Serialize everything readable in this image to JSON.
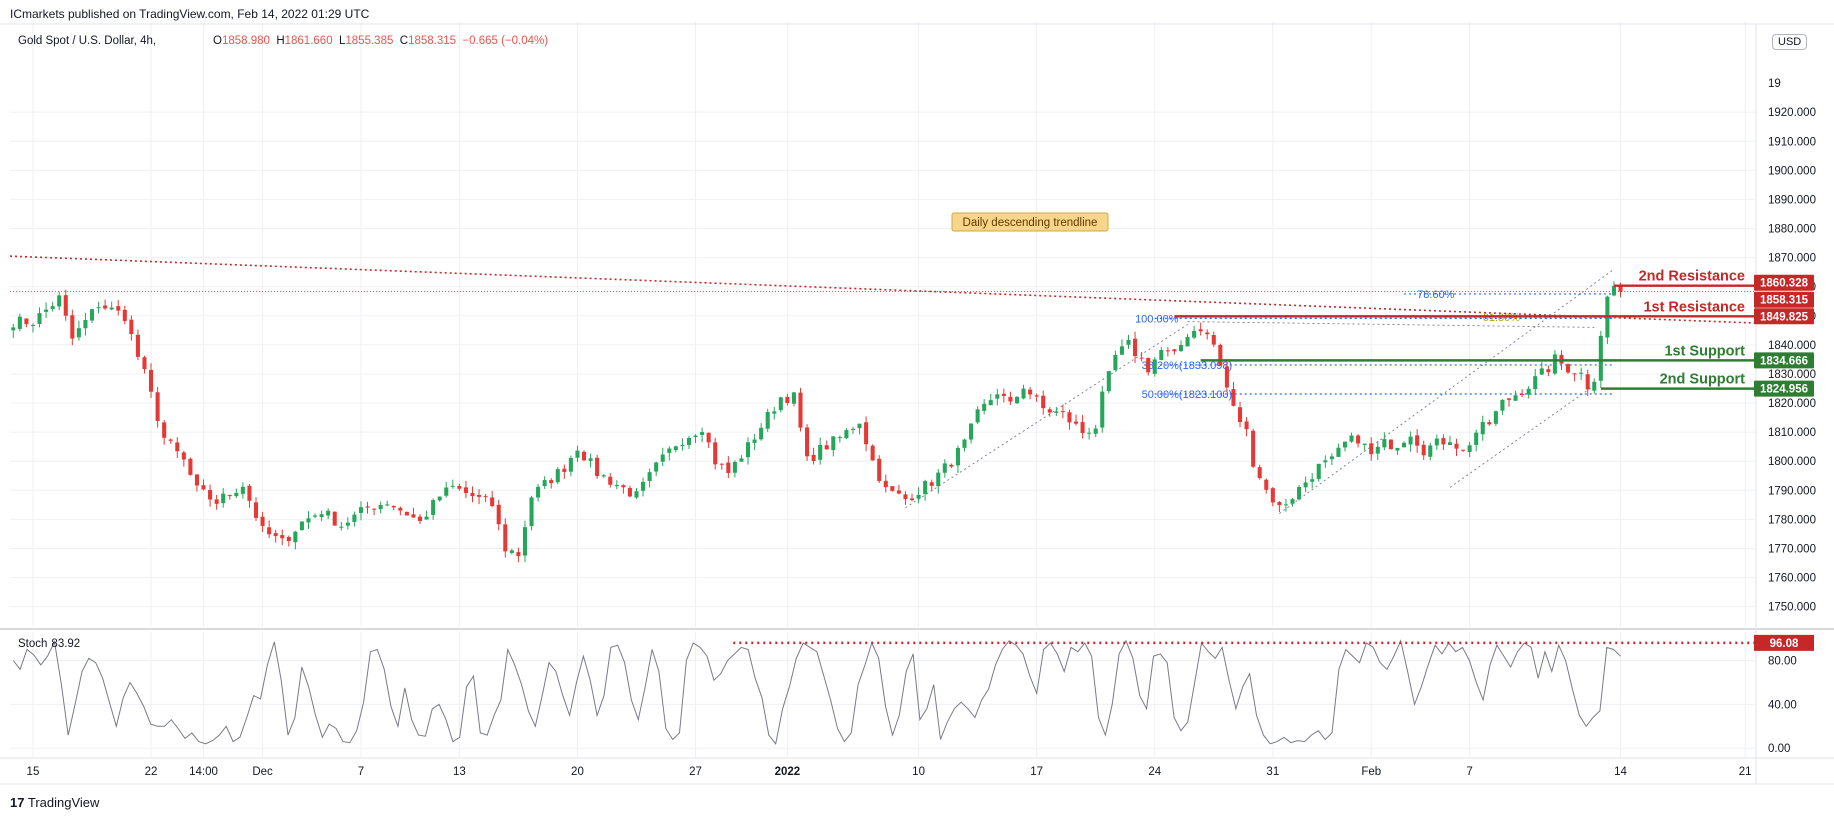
{
  "header": {
    "published_by": "ICmarkets published on TradingView.com, Feb 14, 2022 01:29 UTC",
    "symbol": "Gold Spot / U.S. Dollar, 4h,",
    "ohlc": {
      "o_key": "O",
      "o": "1858.980",
      "h_key": "H",
      "h": "1861.660",
      "l_key": "L",
      "l": "1855.385",
      "c_key": "C",
      "c": "1858.315",
      "change": "−0.665 (−0.04%)"
    },
    "currency": "USD"
  },
  "footer": {
    "brand_mark": "17",
    "brand": "TradingView"
  },
  "colors": {
    "up": "#26a65b",
    "down": "#e53935",
    "resistance": "#c62828",
    "support": "#2e7d32",
    "fib_blue": "#2962ff",
    "fib_gold": "#b5a600",
    "note_bg": "#f7d58a",
    "grid": "#eef0f4",
    "axis_text": "#131722",
    "stoch": "#787b86"
  },
  "chart_data": [
    {
      "type": "candlestick",
      "title": "Gold Spot / U.S. Dollar, 4h,",
      "ylim": [
        1743,
        1951
      ],
      "y_ticks": [
        1750,
        1760,
        1770,
        1780,
        1790,
        1800,
        1810,
        1820,
        1830,
        1840,
        1850,
        1860,
        1870,
        1880,
        1890,
        1900,
        1910,
        1920
      ],
      "y_tick_labels": [
        "1750.000",
        "1760.000",
        "1770.000",
        "1780.000",
        "1790.000",
        "1800.000",
        "1810.000",
        "1820.000",
        "1830.000",
        "1840.000",
        "1850.000",
        "1860.000",
        "1870.000",
        "1880.000",
        "1890.000",
        "1900.000",
        "1910.000",
        "1920.000"
      ],
      "y_top_label": "19",
      "x_ticks": [
        {
          "label": "15",
          "i": 3
        },
        {
          "label": "22",
          "i": 21
        },
        {
          "label": "14:00",
          "i": 29
        },
        {
          "label": "Dec",
          "i": 38
        },
        {
          "label": "7",
          "i": 53
        },
        {
          "label": "13",
          "i": 68
        },
        {
          "label": "20",
          "i": 86
        },
        {
          "label": "27",
          "i": 104
        },
        {
          "label": "2022",
          "i": 118,
          "bold": true
        },
        {
          "label": "10",
          "i": 138
        },
        {
          "label": "17",
          "i": 156
        },
        {
          "label": "24",
          "i": 174
        },
        {
          "label": "31",
          "i": 192
        },
        {
          "label": "Feb",
          "i": 207
        },
        {
          "label": "7",
          "i": 222
        },
        {
          "label": "14",
          "i": 245
        },
        {
          "label": "21",
          "i": 264
        }
      ],
      "path": [
        [
          0,
          1848
        ],
        [
          3,
          1848
        ],
        [
          7,
          1856
        ],
        [
          9,
          1842
        ],
        [
          13,
          1854
        ],
        [
          17,
          1850
        ],
        [
          19,
          1836
        ],
        [
          20,
          1830
        ],
        [
          23,
          1808
        ],
        [
          26,
          1800
        ],
        [
          28,
          1790
        ],
        [
          31,
          1786
        ],
        [
          35,
          1792
        ],
        [
          38,
          1776
        ],
        [
          41,
          1772
        ],
        [
          44,
          1779
        ],
        [
          47,
          1783
        ],
        [
          50,
          1778
        ],
        [
          54,
          1784
        ],
        [
          57,
          1786
        ],
        [
          60,
          1782
        ],
        [
          62,
          1779
        ],
        [
          65,
          1788
        ],
        [
          67,
          1791
        ],
        [
          70,
          1788
        ],
        [
          73,
          1785
        ],
        [
          75,
          1770
        ],
        [
          77,
          1768
        ],
        [
          79,
          1788
        ],
        [
          84,
          1798
        ],
        [
          86,
          1805
        ],
        [
          89,
          1796
        ],
        [
          92,
          1792
        ],
        [
          95,
          1788
        ],
        [
          98,
          1798
        ],
        [
          101,
          1806
        ],
        [
          105,
          1812
        ],
        [
          107,
          1800
        ],
        [
          109,
          1796
        ],
        [
          112,
          1805
        ],
        [
          114,
          1812
        ],
        [
          117,
          1822
        ],
        [
          119,
          1822
        ],
        [
          121,
          1800
        ],
        [
          123,
          1804
        ],
        [
          126,
          1808
        ],
        [
          129,
          1814
        ],
        [
          131,
          1800
        ],
        [
          133,
          1790
        ],
        [
          136,
          1787
        ],
        [
          140,
          1793
        ],
        [
          143,
          1800
        ],
        [
          145,
          1806
        ],
        [
          147,
          1816
        ],
        [
          150,
          1824
        ],
        [
          152,
          1819
        ],
        [
          154,
          1826
        ],
        [
          157,
          1818
        ],
        [
          160,
          1816
        ],
        [
          163,
          1810
        ],
        [
          165,
          1812
        ],
        [
          166,
          1822
        ],
        [
          168,
          1836
        ],
        [
          170,
          1840
        ],
        [
          173,
          1832
        ],
        [
          175,
          1838
        ],
        [
          177,
          1836
        ],
        [
          179,
          1844
        ],
        [
          181,
          1846
        ],
        [
          183,
          1840
        ],
        [
          186,
          1818
        ],
        [
          188,
          1810
        ],
        [
          189,
          1800
        ],
        [
          191,
          1790
        ],
        [
          193,
          1784
        ],
        [
          195,
          1788
        ],
        [
          197,
          1793
        ],
        [
          199,
          1798
        ],
        [
          201,
          1800
        ],
        [
          203,
          1806
        ],
        [
          205,
          1808
        ],
        [
          207,
          1802
        ],
        [
          209,
          1806
        ],
        [
          211,
          1806
        ],
        [
          213,
          1810
        ],
        [
          215,
          1804
        ],
        [
          217,
          1806
        ],
        [
          219,
          1808
        ],
        [
          221,
          1803
        ],
        [
          223,
          1810
        ],
        [
          225,
          1813
        ],
        [
          227,
          1820
        ],
        [
          229,
          1823
        ],
        [
          231,
          1826
        ],
        [
          233,
          1830
        ],
        [
          234,
          1832
        ],
        [
          235,
          1835
        ],
        [
          237,
          1832
        ],
        [
          239,
          1830
        ],
        [
          240,
          1826
        ],
        [
          241,
          1829
        ],
        [
          242,
          1844
        ],
        [
          243,
          1856
        ],
        [
          244,
          1860
        ],
        [
          245,
          1858.3
        ]
      ],
      "last_index": 245,
      "annotations": {
        "trendline_label": "Daily descending trendline",
        "levels": [
          {
            "name": "2nd Resistance",
            "price": 1860.328,
            "tag": "1860.328",
            "kind": "resistance"
          },
          {
            "name": "1st Resistance",
            "price": 1849.825,
            "tag": "1849.825",
            "kind": "resistance"
          },
          {
            "name": "1st Support",
            "price": 1834.666,
            "tag": "1834.666",
            "kind": "support"
          },
          {
            "name": "2nd Support",
            "price": 1824.956,
            "tag": "1824.956",
            "kind": "support"
          }
        ],
        "last_price_tag": "1858.315",
        "last_price": 1858.315,
        "fib_labels": [
          {
            "text": "100.00%",
            "price": 1849.1
          },
          {
            "text": "38.20%(1833.098)",
            "price": 1833.098
          },
          {
            "text": "50.00%(1823.100)",
            "price": 1823.1
          },
          {
            "text": "78.60%",
            "price": 1857.5
          },
          {
            "text": "61.80%",
            "price": 1849.5
          }
        ]
      }
    },
    {
      "type": "line",
      "title": "Stoch",
      "value_label": "83.92",
      "ylim": [
        -8,
        106
      ],
      "y_ticks": [
        0,
        40,
        80
      ],
      "y_tick_labels": [
        "0.00",
        "40.00",
        "80.00"
      ],
      "overbought_level": 96.08,
      "overbought_tag": "96.08",
      "values": [
        80,
        72,
        90,
        85,
        76,
        84,
        97,
        58,
        12,
        40,
        70,
        82,
        78,
        64,
        42,
        20,
        46,
        60,
        50,
        38,
        22,
        20,
        20,
        26,
        18,
        9,
        14,
        6,
        4,
        7,
        12,
        20,
        6,
        10,
        28,
        48,
        45,
        76,
        97,
        62,
        12,
        28,
        74,
        56,
        30,
        10,
        22,
        18,
        6,
        5,
        16,
        42,
        88,
        90,
        72,
        38,
        20,
        55,
        26,
        12,
        11,
        36,
        40,
        26,
        6,
        10,
        56,
        66,
        14,
        12,
        30,
        44,
        90,
        76,
        58,
        34,
        20,
        48,
        78,
        70,
        48,
        30,
        60,
        84,
        62,
        30,
        48,
        92,
        94,
        78,
        44,
        26,
        56,
        90,
        70,
        18,
        8,
        14,
        80,
        96,
        92,
        84,
        62,
        68,
        80,
        86,
        92,
        90,
        64,
        46,
        12,
        4,
        36,
        56,
        82,
        96,
        92,
        88,
        66,
        44,
        18,
        6,
        14,
        58,
        76,
        96,
        82,
        38,
        12,
        30,
        70,
        86,
        26,
        36,
        58,
        8,
        24,
        36,
        42,
        36,
        28,
        44,
        54,
        76,
        90,
        98,
        94,
        86,
        66,
        50,
        90,
        96,
        86,
        70,
        92,
        88,
        96,
        84,
        28,
        12,
        40,
        86,
        98,
        82,
        48,
        36,
        84,
        86,
        78,
        28,
        16,
        24,
        60,
        96,
        88,
        82,
        92,
        62,
        36,
        56,
        68,
        30,
        12,
        4,
        6,
        10,
        5,
        7,
        6,
        12,
        16,
        8,
        14,
        72,
        90,
        84,
        78,
        96,
        92,
        78,
        72,
        84,
        98,
        70,
        40,
        56,
        76,
        94,
        86,
        96,
        88,
        92,
        80,
        60,
        44,
        76,
        94,
        84,
        74,
        88,
        96,
        92,
        64,
        88,
        70,
        94,
        80,
        54,
        30,
        20,
        28,
        34,
        92,
        90,
        83.92
      ]
    }
  ]
}
